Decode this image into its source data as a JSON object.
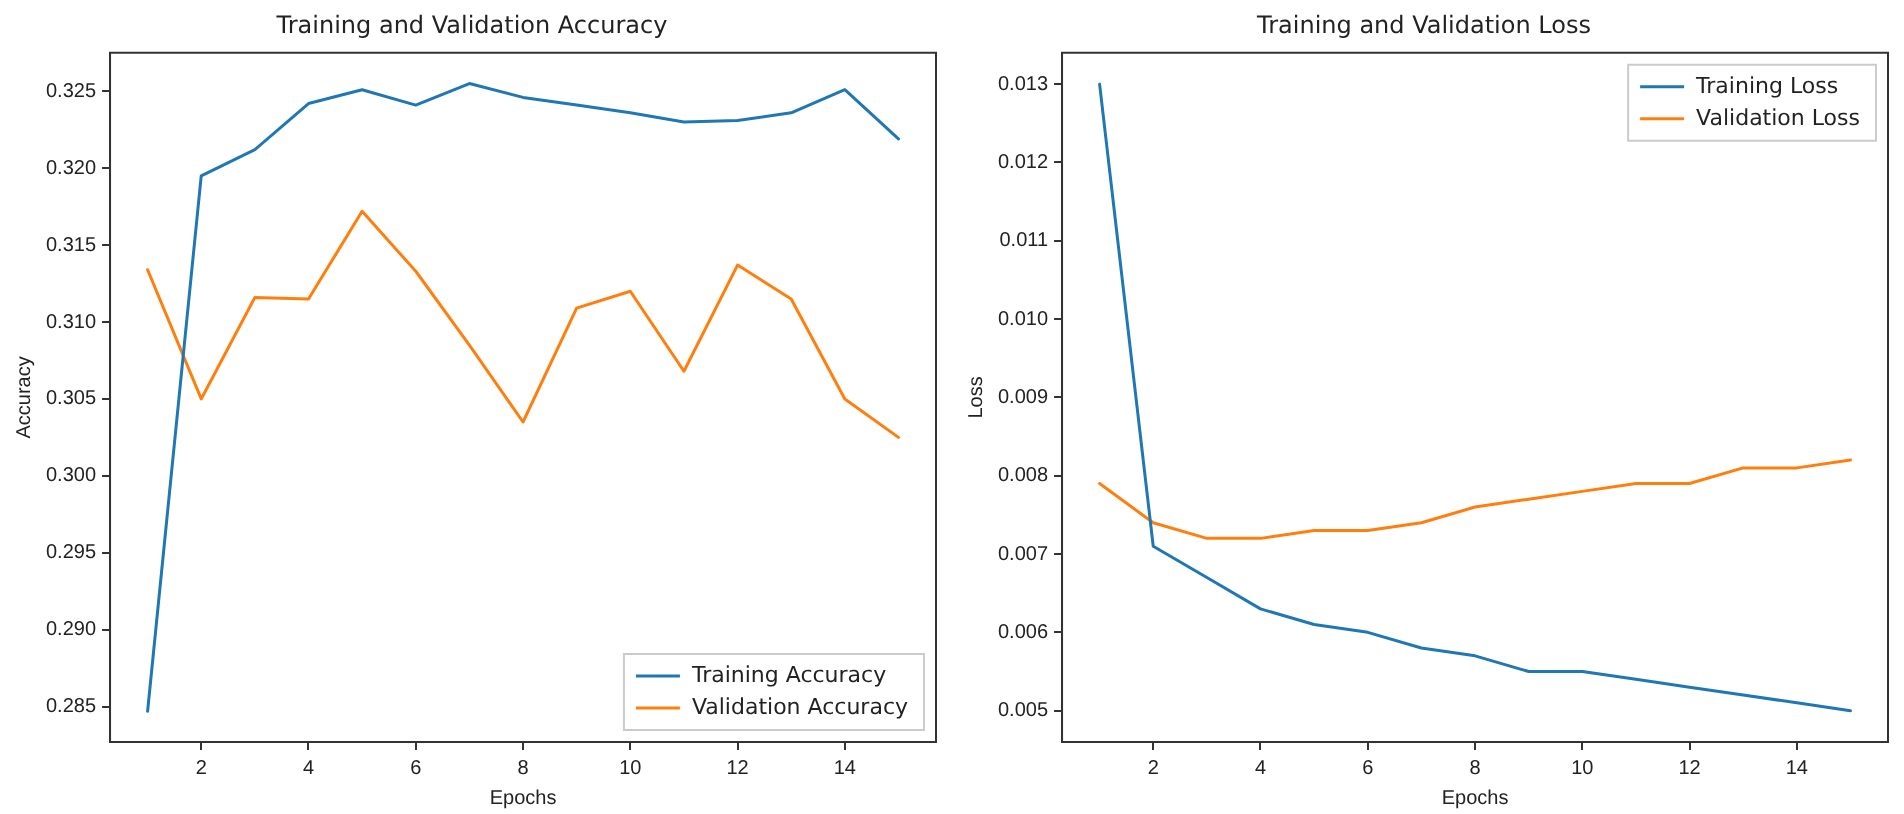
{
  "chart_data": [
    {
      "type": "line",
      "title": "Training and Validation Accuracy",
      "xlabel": "Epochs",
      "ylabel": "Accuracy",
      "x": [
        1,
        2,
        3,
        4,
        5,
        6,
        7,
        8,
        9,
        10,
        11,
        12,
        13,
        14,
        15
      ],
      "series": [
        {
          "name": "Training Accuracy",
          "color": "#1f77b4",
          "values": [
            0.2847,
            0.3195,
            0.3212,
            0.3242,
            0.3251,
            0.3241,
            0.3255,
            0.3246,
            0.3241,
            0.3236,
            0.323,
            0.3231,
            0.3236,
            0.3251,
            0.3219
          ]
        },
        {
          "name": "Validation Accuracy",
          "color": "#ff7f0e",
          "values": [
            0.3134,
            0.305,
            0.3116,
            0.3115,
            0.3172,
            0.3133,
            0.3085,
            0.3035,
            0.3109,
            0.312,
            0.3068,
            0.3137,
            0.3115,
            0.305,
            0.3025
          ]
        }
      ],
      "xlim": [
        0.3,
        15.7
      ],
      "xticks": [
        2,
        4,
        6,
        8,
        10,
        12,
        14
      ],
      "ylim": [
        0.2827,
        0.3275
      ],
      "yticks": [
        0.285,
        {
          "value": 0.29,
          "label": "0.290"
        },
        0.295,
        {
          "value": 0.3,
          "label": "0.300"
        },
        0.305,
        {
          "value": 0.31,
          "label": "0.310"
        },
        0.315,
        {
          "value": 0.32,
          "label": "0.320"
        },
        0.325
      ],
      "grid": false,
      "legend": "bottom right",
      "marker": "none",
      "line_style": "solid"
    },
    {
      "type": "line",
      "title": "Training and Validation Loss",
      "xlabel": "Epochs",
      "ylabel": "Loss",
      "x": [
        1,
        2,
        3,
        4,
        5,
        6,
        7,
        8,
        9,
        10,
        11,
        12,
        13,
        14,
        15
      ],
      "series": [
        {
          "name": "Training Loss",
          "color": "#1f77b4",
          "values": [
            0.013,
            0.0071,
            0.0067,
            0.0063,
            0.0061,
            0.006,
            0.0058,
            0.0057,
            0.0055,
            0.0055,
            0.0054,
            0.0053,
            0.0052,
            0.0051,
            0.005
          ]
        },
        {
          "name": "Validation Loss",
          "color": "#ff7f0e",
          "values": [
            0.0079,
            0.0074,
            0.0072,
            0.0072,
            0.0073,
            0.0073,
            0.0074,
            0.0076,
            0.0077,
            0.0078,
            0.0079,
            0.0079,
            0.0081,
            0.0081,
            0.0082
          ]
        }
      ],
      "xlim": [
        0.3,
        15.7
      ],
      "xticks": [
        2,
        4,
        6,
        8,
        10,
        12,
        14
      ],
      "ylim": [
        0.0046,
        0.0134
      ],
      "yticks": [
        0.005,
        0.006,
        0.007,
        0.008,
        0.009,
        {
          "value": 0.01,
          "label": "0.010"
        },
        0.011,
        0.012,
        0.013
      ],
      "grid": false,
      "legend": "top right",
      "marker": "none",
      "line_style": "solid"
    }
  ]
}
